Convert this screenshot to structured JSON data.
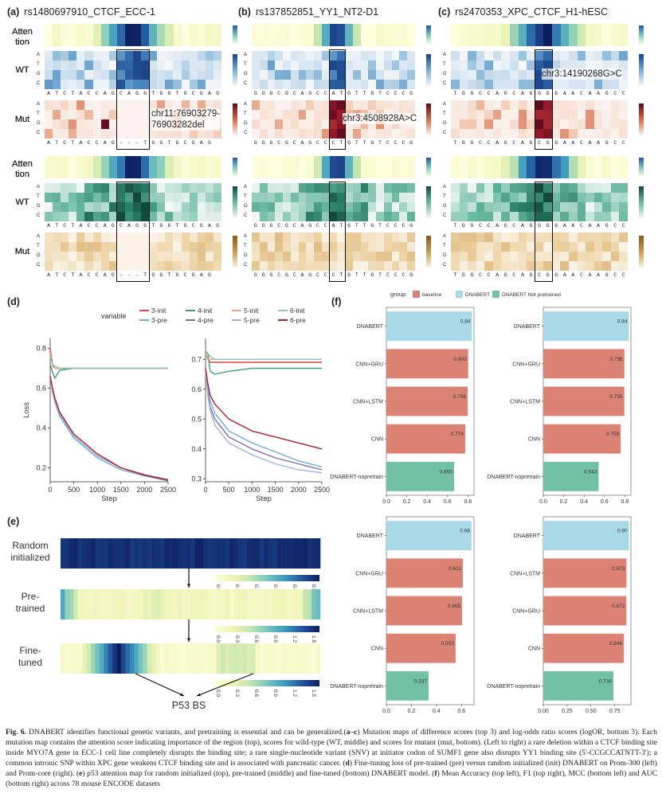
{
  "mut_panels": [
    {
      "letter": "(a)",
      "title": "rs1480697910_CTCF_ECC-1",
      "seq_wt": "ATCTACCAGCAGGTGGTGCGAG",
      "seq_mut": "ATCTACCAG---TGGTGCGAG",
      "annotation": "chr11:76903279-\n76903282del"
    },
    {
      "letter": "(b)",
      "title": "rs137852851_YY1_NT2-D1",
      "seq_wt": "GGGCGCAGCCATGTTGTCCCG",
      "seq_mut": "GGGCGCAGCCCTGTTGTCCCG",
      "annotation": "chr3:4508928A>C"
    },
    {
      "letter": "(c)",
      "title": "rs2470353_XPC_CTCF_H1-hESC",
      "seq_wt": "TGGCCAGCAGGGGAACAAGCC",
      "seq_mut": "TGGCCAGCAGCGGAACAAGCC",
      "annotation": "chr3:14190268G>C"
    }
  ],
  "row_labels": {
    "atten": "Atten\ntion",
    "wt": "WT",
    "mut": "Mut"
  },
  "nucleotides": [
    "A",
    "T",
    "G",
    "C"
  ],
  "panel_d": {
    "letter": "(d)",
    "legend_title": "variable",
    "legend": [
      {
        "name": "3-init",
        "color": "#e0473a"
      },
      {
        "name": "4-init",
        "color": "#3fa276"
      },
      {
        "name": "5-init",
        "color": "#f0a07a"
      },
      {
        "name": "6-init",
        "color": "#8ec9b5"
      },
      {
        "name": "3-pre",
        "color": "#6aaedc"
      },
      {
        "name": "4-pre",
        "color": "#7a6fb0"
      },
      {
        "name": "5-pre",
        "color": "#9fb4dd"
      },
      {
        "name": "6-pre",
        "color": "#b0202a"
      }
    ],
    "ylabel": "Loss",
    "xlabel": "Step"
  },
  "chart_data": [
    {
      "type": "line",
      "xlabel": "Step",
      "ylabel": "Loss",
      "xlim": [
        0,
        2500
      ],
      "ylim": [
        0.13,
        0.85
      ],
      "xticks": [
        0,
        500,
        1000,
        1500,
        2000,
        2500
      ],
      "yticks": [
        0.2,
        0.4,
        0.6,
        0.8
      ],
      "x": [
        0,
        50,
        100,
        200,
        500,
        1000,
        1500,
        2000,
        2500
      ],
      "series": [
        {
          "name": "3-init",
          "values": [
            0.8,
            0.72,
            0.7,
            0.7,
            0.7,
            0.7,
            0.7,
            0.7,
            0.7
          ]
        },
        {
          "name": "4-init",
          "values": [
            0.72,
            0.68,
            0.65,
            0.69,
            0.7,
            0.7,
            0.7,
            0.7,
            0.7
          ]
        },
        {
          "name": "5-init",
          "values": [
            0.78,
            0.71,
            0.7,
            0.7,
            0.7,
            0.7,
            0.7,
            0.7,
            0.7
          ]
        },
        {
          "name": "6-init",
          "values": [
            0.76,
            0.72,
            0.71,
            0.7,
            0.7,
            0.7,
            0.7,
            0.7,
            0.7
          ]
        },
        {
          "name": "3-pre",
          "values": [
            0.66,
            0.58,
            0.53,
            0.46,
            0.35,
            0.25,
            0.19,
            0.16,
            0.14
          ]
        },
        {
          "name": "4-pre",
          "values": [
            0.66,
            0.59,
            0.54,
            0.47,
            0.36,
            0.26,
            0.2,
            0.16,
            0.135
          ]
        },
        {
          "name": "5-pre",
          "values": [
            0.66,
            0.59,
            0.54,
            0.47,
            0.36,
            0.26,
            0.2,
            0.165,
            0.14
          ]
        },
        {
          "name": "6-pre",
          "values": [
            0.66,
            0.6,
            0.55,
            0.48,
            0.37,
            0.27,
            0.2,
            0.165,
            0.14
          ]
        }
      ]
    },
    {
      "type": "line",
      "xlabel": "Step",
      "ylabel": "",
      "xlim": [
        0,
        2500
      ],
      "ylim": [
        0.29,
        0.77
      ],
      "xticks": [
        0,
        500,
        1000,
        1500,
        2000,
        2500
      ],
      "yticks": [
        0.3,
        0.4,
        0.5,
        0.6,
        0.7
      ],
      "x": [
        0,
        50,
        100,
        200,
        500,
        1000,
        1500,
        2000,
        2500
      ],
      "series": [
        {
          "name": "3-init",
          "values": [
            0.72,
            0.7,
            0.69,
            0.69,
            0.69,
            0.69,
            0.69,
            0.69,
            0.69
          ]
        },
        {
          "name": "4-init",
          "values": [
            0.72,
            0.72,
            0.66,
            0.65,
            0.66,
            0.67,
            0.67,
            0.67,
            0.67
          ]
        },
        {
          "name": "5-init",
          "values": [
            0.72,
            0.7,
            0.7,
            0.7,
            0.7,
            0.7,
            0.7,
            0.7,
            0.7
          ]
        },
        {
          "name": "6-init",
          "values": [
            0.73,
            0.72,
            0.71,
            0.7,
            0.7,
            0.7,
            0.7,
            0.7,
            0.7
          ]
        },
        {
          "name": "3-pre",
          "values": [
            0.66,
            0.6,
            0.56,
            0.52,
            0.46,
            0.42,
            0.39,
            0.36,
            0.34
          ]
        },
        {
          "name": "4-pre",
          "values": [
            0.66,
            0.59,
            0.54,
            0.5,
            0.44,
            0.4,
            0.37,
            0.35,
            0.33
          ]
        },
        {
          "name": "5-pre",
          "values": [
            0.66,
            0.58,
            0.53,
            0.48,
            0.42,
            0.38,
            0.35,
            0.33,
            0.32
          ]
        },
        {
          "name": "6-pre",
          "values": [
            0.67,
            0.62,
            0.58,
            0.55,
            0.5,
            0.46,
            0.44,
            0.42,
            0.4
          ]
        }
      ]
    },
    {
      "type": "bar",
      "categories": [
        "DNABERT",
        "CNN+GRU",
        "CNN+LSTM",
        "CNN",
        "DNABERT-nopretrain"
      ],
      "values": [
        0.84,
        0.803,
        0.798,
        0.774,
        0.665
      ],
      "labels": [
        "0.84",
        "0.803",
        "0.798",
        "0.774",
        "0.665"
      ],
      "groups": [
        "DNABERT",
        "baseline",
        "baseline",
        "baseline",
        "DNABERT Not pretrained"
      ],
      "xlim": [
        0,
        0.86
      ],
      "xticks": [
        0.0,
        0.2,
        0.4,
        0.6,
        0.8
      ],
      "xtick_labels": [
        "0.0",
        "0.2",
        "0.4",
        "0.6",
        "0.8"
      ]
    },
    {
      "type": "bar",
      "categories": [
        "DNABERT",
        "CNN+GRU",
        "CNN+LSTM",
        "CNN",
        "DNABERT-nopretrain"
      ],
      "values": [
        0.84,
        0.796,
        0.795,
        0.759,
        0.543
      ],
      "labels": [
        "0.84",
        "0.796",
        "0.795",
        "0.759",
        "0.543"
      ],
      "groups": [
        "DNABERT",
        "baseline",
        "baseline",
        "baseline",
        "DNABERT Not pretrained"
      ],
      "xlim": [
        0,
        0.86
      ],
      "xticks": [
        0.0,
        0.2,
        0.4,
        0.6,
        0.8
      ],
      "xtick_labels": [
        "0.0",
        "0.2",
        "0.4",
        "0.6",
        "0.8"
      ]
    },
    {
      "type": "bar",
      "categories": [
        "DNABERT",
        "CNN+GRU",
        "CNN+LSTM",
        "CNN",
        "DNABERT-nopretrain"
      ],
      "values": [
        0.68,
        0.611,
        0.605,
        0.553,
        0.337
      ],
      "labels": [
        "0.68",
        "0.611",
        "0.605",
        "0.553",
        "0.337"
      ],
      "groups": [
        "DNABERT",
        "baseline",
        "baseline",
        "baseline",
        "DNABERT Not pretrained"
      ],
      "xlim": [
        0,
        0.7
      ],
      "xticks": [
        0.0,
        0.2,
        0.4,
        0.6
      ],
      "xtick_labels": [
        "0.0",
        "0.2",
        "0.4",
        "0.6"
      ]
    },
    {
      "type": "bar",
      "categories": [
        "DNABERT",
        "CNN+LSTM",
        "CNN+GRU",
        "CNN",
        "DNABERT-nopretrain"
      ],
      "values": [
        0.9,
        0.873,
        0.872,
        0.846,
        0.736
      ],
      "labels": [
        "0.90",
        "0.873",
        "0.872",
        "0.846",
        "0.736"
      ],
      "groups": [
        "DNABERT",
        "baseline",
        "baseline",
        "baseline",
        "DNABERT Not pretrained"
      ],
      "xlim": [
        0,
        0.92
      ],
      "xticks": [
        0.0,
        0.25,
        0.5,
        0.75
      ],
      "xtick_labels": [
        "0.00",
        "0.25",
        "0.50",
        "0.75"
      ]
    }
  ],
  "panel_e": {
    "letter": "(e)",
    "rows": [
      {
        "label": "Random\ninitialized",
        "ticks": [
          "0.0",
          "0.1",
          "0.2",
          "0.3",
          "0.4",
          "0.5"
        ]
      },
      {
        "label": "Pre-\ntrained",
        "ticks": [
          "0.0",
          "0.3",
          "0.6",
          "0.9",
          "1.2",
          "1.5"
        ]
      },
      {
        "label": "Fine-\ntuned",
        "ticks": [
          "0.0",
          "0.3",
          "0.6",
          "0.9",
          "1.2",
          "1.5"
        ]
      }
    ],
    "p53_label": "P53 BS"
  },
  "panel_f": {
    "letter": "(f)",
    "legend_title": "group",
    "legend": [
      {
        "name": "baseline",
        "color": "#dc8275"
      },
      {
        "name": "DNABERT",
        "color": "#a9d8e6"
      },
      {
        "name": "DNABERT Not pretrained",
        "color": "#73c1a4"
      }
    ]
  },
  "caption": {
    "fig": "Fig. 6.",
    "text1": " DNABERT identifies functional genetic variants, and pretraining is essential and can be generalized.(",
    "ac": "a–c",
    "text2": ") Mutation maps of difference scores (top 3) and log-odds ratio scores (logOR, bottom 3). Each mutation map contains the attention score indicating importance of the region (top), scores for wild-type (WT, middle) and scores for mutant (mut, bottom). (Left to right) a rare deletion within a CTCF binding site inside MYO7A gene in ECC-1 cell line completely disrupts the binding site; a rare single-nucleotide variant (SNV) at initiator codon of SUMF1 gene also disrupts YY1 binding site (5'-CCGCCATNTT-3'); a common intronic SNP within XPC gene weakens CTCF binding site and is associated with pancreatic cancer. (",
    "d": "d",
    "text3": ") Fine-tuning loss of pre-trained (pre) versus random initialized (init) DNABERT on Prom-300 (left) and Prom-core (right). (",
    "e": "e",
    "text4": ") p53 attention map for random initialized (top), pre-trained (middle) and fine-tuned (bottom) DNABERT model. (",
    "f": "f",
    "text5": ") Mean Accuracy (top left), F1 (top right), MCC (bottom left) and AUC (bottom right) across 78 mouse ENCODE datasets"
  }
}
